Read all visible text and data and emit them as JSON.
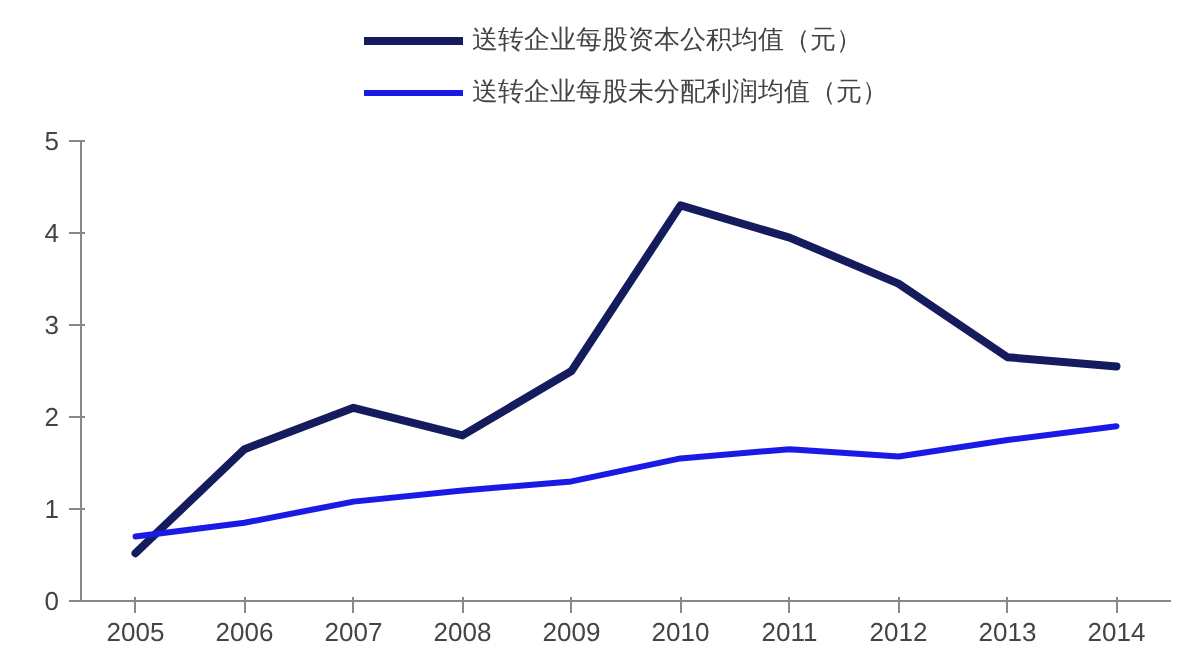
{
  "chart_data": {
    "type": "line",
    "categories": [
      "2005",
      "2006",
      "2007",
      "2008",
      "2009",
      "2010",
      "2011",
      "2012",
      "2013",
      "2014"
    ],
    "series": [
      {
        "name": "送转企业每股资本公积均值（元）",
        "color": "#141c5e",
        "values": [
          0.52,
          1.65,
          2.1,
          1.8,
          2.5,
          4.3,
          3.95,
          3.45,
          2.65,
          2.55
        ]
      },
      {
        "name": "送转企业每股未分配利润均值（元）",
        "color": "#1a1ae6",
        "values": [
          0.7,
          0.85,
          1.08,
          1.2,
          1.3,
          1.55,
          1.65,
          1.57,
          1.75,
          1.9
        ]
      }
    ],
    "ylim": [
      0,
      5
    ],
    "yticks": [
      0,
      1,
      2,
      3,
      4,
      5
    ],
    "legend": "top",
    "grid": false
  }
}
